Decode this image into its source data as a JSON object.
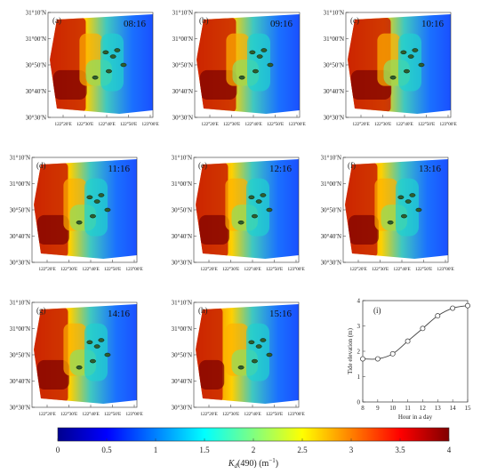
{
  "colorbar": {
    "ticks": [
      "0",
      "0.5",
      "1",
      "1.5",
      "2",
      "2.5",
      "3",
      "3.5",
      "4"
    ],
    "label_main": "K",
    "label_sub": "d",
    "label_rest": "(490) (m",
    "label_exp": "−1",
    "label_close": ")",
    "min": 0,
    "max": 4,
    "colormap": [
      "#00008f",
      "#0000ff",
      "#0080ff",
      "#00ffff",
      "#80ff80",
      "#ffff00",
      "#ff8000",
      "#ff0000",
      "#800000"
    ]
  },
  "maps": [
    {
      "tag": "(a)",
      "time": "08:16"
    },
    {
      "tag": "(b)",
      "time": "09:16"
    },
    {
      "tag": "(c)",
      "time": "10:16"
    },
    {
      "tag": "(d)",
      "time": "11:16"
    },
    {
      "tag": "(e)",
      "time": "12:16"
    },
    {
      "tag": "(f)",
      "time": "13:16"
    },
    {
      "tag": "(g)",
      "time": "14:16"
    },
    {
      "tag": "(h)",
      "time": "15:16"
    }
  ],
  "map_axes": {
    "lat_ticks": [
      "31°10′N",
      "31°00′N",
      "30°50′N",
      "30°40′N",
      "30°30′N"
    ],
    "lon_ticks": [
      "122°20′E",
      "122°30′E",
      "122°40′E",
      "122°50′E",
      "123°00′E"
    ]
  },
  "chart_data": {
    "type": "line",
    "panel": "(i)",
    "title": "",
    "xlabel": "Hour in a day",
    "ylabel": "Tide elevation (m)",
    "x": [
      8,
      9,
      10,
      11,
      12,
      13,
      14,
      15
    ],
    "y": [
      1.7,
      1.7,
      1.9,
      2.4,
      2.9,
      3.4,
      3.7,
      3.8
    ],
    "xlim": [
      8,
      15
    ],
    "ylim": [
      0,
      4
    ],
    "xticks": [
      "8",
      "9",
      "10",
      "11",
      "12",
      "13",
      "14",
      "15"
    ],
    "yticks": [
      "0",
      "1",
      "2",
      "3",
      "4"
    ],
    "marker": "circle",
    "grid": false
  }
}
